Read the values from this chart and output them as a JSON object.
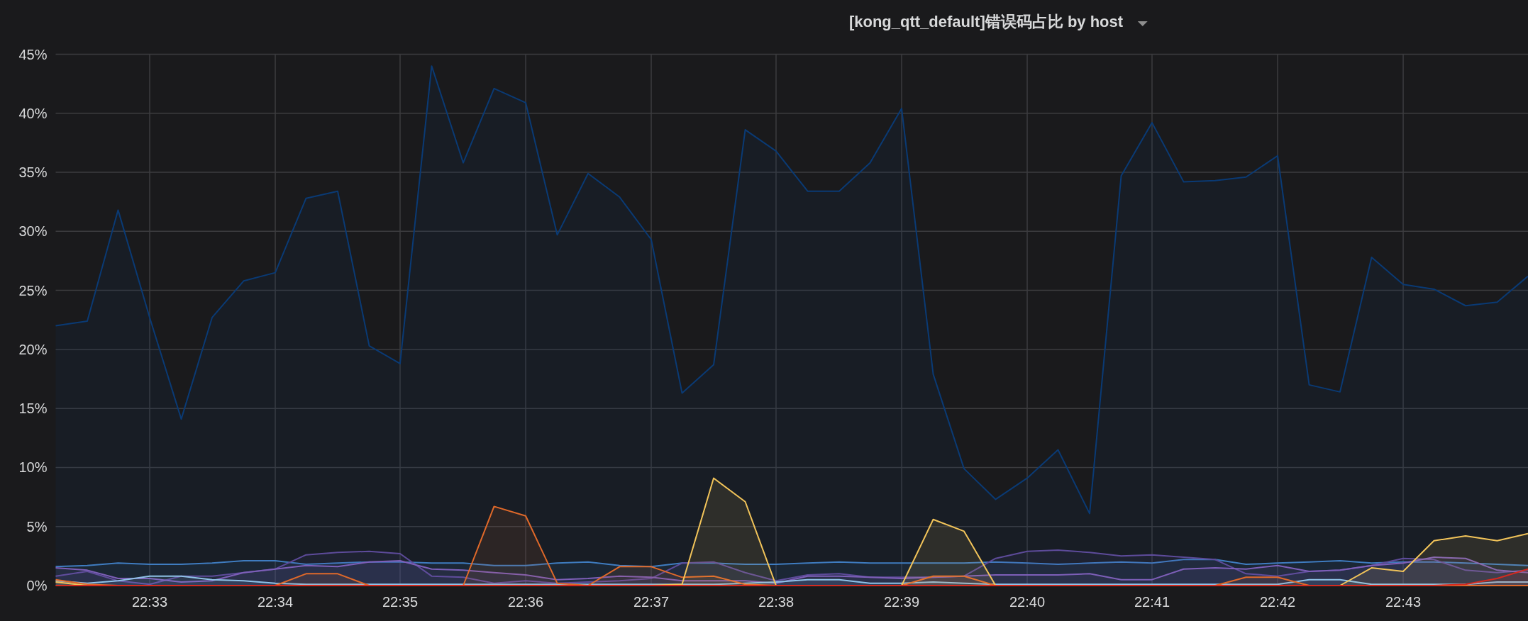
{
  "chart_data": {
    "type": "area",
    "title": "[kong_qtt_default]错误码占比 by host",
    "x": [
      22.5375,
      22.5417,
      22.5458,
      22.55,
      22.5542,
      22.5583,
      22.5625,
      22.5667,
      22.5708,
      22.575,
      22.5792,
      22.5833,
      22.5875,
      22.5917,
      22.5958,
      22.6,
      22.6042,
      22.6083,
      22.6125,
      22.6167,
      22.6208,
      22.625,
      22.6292,
      22.6333,
      22.6375,
      22.6417,
      22.6458,
      22.65,
      22.6542,
      22.6583,
      22.6625,
      22.6667,
      22.6708,
      22.675,
      22.6792,
      22.6833,
      22.6875,
      22.6917,
      22.6958,
      22.7,
      22.7042,
      22.7083,
      22.7125,
      22.7167,
      22.7208,
      22.725,
      22.7292,
      22.7333
    ],
    "xlim": [
      22.5375,
      22.7333
    ],
    "xticks": [
      {
        "value": 22.55,
        "label": "22:33"
      },
      {
        "value": 22.5667,
        "label": "22:34"
      },
      {
        "value": 22.5833,
        "label": "22:35"
      },
      {
        "value": 22.6,
        "label": "22:36"
      },
      {
        "value": 22.6167,
        "label": "22:37"
      },
      {
        "value": 22.6333,
        "label": "22:38"
      },
      {
        "value": 22.65,
        "label": "22:39"
      },
      {
        "value": 22.6667,
        "label": "22:40"
      },
      {
        "value": 22.6833,
        "label": "22:41"
      },
      {
        "value": 22.7,
        "label": "22:42"
      },
      {
        "value": 22.7167,
        "label": "22:43"
      }
    ],
    "ylim": [
      0,
      45
    ],
    "yticks": [
      {
        "value": 0,
        "label": "0%"
      },
      {
        "value": 5,
        "label": "5%"
      },
      {
        "value": 10,
        "label": "10%"
      },
      {
        "value": 15,
        "label": "15%"
      },
      {
        "value": 20,
        "label": "20%"
      },
      {
        "value": 25,
        "label": "25%"
      },
      {
        "value": 30,
        "label": "30%"
      },
      {
        "value": 35,
        "label": "35%"
      },
      {
        "value": 40,
        "label": "40%"
      },
      {
        "value": 45,
        "label": "45%"
      }
    ],
    "grid": true,
    "series": [
      {
        "color": "#0a3a74",
        "values": [
          22.0,
          22.4,
          31.8,
          22.7,
          14.1,
          22.7,
          25.8,
          26.5,
          32.8,
          33.4,
          20.3,
          18.8,
          44.0,
          35.8,
          42.1,
          40.9,
          29.7,
          34.9,
          32.9,
          29.3,
          16.3,
          18.7,
          38.6,
          36.8,
          33.4,
          33.4,
          35.8,
          40.4,
          17.9,
          9.9,
          7.3,
          9.1,
          11.5,
          6.1,
          34.7,
          39.2,
          34.2,
          34.3,
          34.6,
          36.4,
          17.0,
          16.4,
          27.8,
          25.5,
          25.1,
          23.7,
          24.0,
          26.2
        ]
      },
      {
        "color": "#3f7cc0",
        "values": [
          1.6,
          1.7,
          1.9,
          1.8,
          1.8,
          1.9,
          2.1,
          2.1,
          1.8,
          1.9,
          2.0,
          2.0,
          1.9,
          1.9,
          1.7,
          1.7,
          1.9,
          2.0,
          1.7,
          1.6,
          1.9,
          1.9,
          1.8,
          1.8,
          1.9,
          2.0,
          1.9,
          1.9,
          1.9,
          1.9,
          2.0,
          1.9,
          1.8,
          1.9,
          2.0,
          1.9,
          2.2,
          2.2,
          1.8,
          1.9,
          2.0,
          2.1,
          1.9,
          2.0,
          2.0,
          1.9,
          1.8,
          1.7
        ]
      },
      {
        "color": "#5d4b9a",
        "values": [
          0.8,
          1.2,
          0.4,
          0.1,
          0.8,
          0.8,
          1.1,
          1.4,
          2.6,
          2.8,
          2.9,
          2.7,
          0.8,
          0.7,
          0.2,
          0.4,
          0.2,
          0.3,
          0.4,
          0.6,
          1.9,
          2.0,
          1.1,
          0.4,
          0.9,
          1.0,
          0.7,
          0.7,
          0.7,
          0.8,
          2.3,
          2.9,
          3.0,
          2.8,
          2.5,
          2.6,
          2.4,
          2.2,
          1.0,
          0.8,
          1.2,
          1.3,
          1.7,
          2.3,
          2.2,
          1.3,
          1.1,
          1.3
        ]
      },
      {
        "color": "#7d5fb8",
        "values": [
          1.5,
          1.3,
          0.6,
          0.6,
          0.3,
          0.4,
          1.1,
          1.4,
          1.7,
          1.6,
          2.0,
          2.1,
          1.4,
          1.3,
          1.1,
          0.9,
          0.5,
          0.6,
          0.8,
          0.7,
          0.4,
          0.4,
          0.4,
          0.2,
          0.8,
          0.8,
          0.7,
          0.6,
          0.7,
          0.8,
          0.9,
          0.9,
          0.9,
          1.0,
          0.5,
          0.5,
          1.4,
          1.5,
          1.4,
          1.7,
          1.2,
          1.3,
          1.7,
          1.9,
          2.4,
          2.3,
          1.3,
          1.1
        ]
      },
      {
        "color": "#8fc2e8",
        "values": [
          0.4,
          0.2,
          0.4,
          0.8,
          0.8,
          0.5,
          0.4,
          0.2,
          0.1,
          0.1,
          0.1,
          0.1,
          0.1,
          0.1,
          0.1,
          0.1,
          0.1,
          0.1,
          0.1,
          0.1,
          0.1,
          0.1,
          0.2,
          0.3,
          0.5,
          0.5,
          0.2,
          0.2,
          0.3,
          0.2,
          0.1,
          0.1,
          0.1,
          0.1,
          0.1,
          0.1,
          0.1,
          0.1,
          0.1,
          0.1,
          0.5,
          0.5,
          0.1,
          0.1,
          0.1,
          0.1,
          0.3,
          0.3
        ]
      },
      {
        "color": "#e0692a",
        "values": [
          0.5,
          0.1,
          0,
          0,
          0,
          0,
          0,
          0,
          1.0,
          1.0,
          0,
          0,
          0,
          0,
          6.7,
          5.9,
          0.2,
          0,
          1.6,
          1.6,
          0.7,
          0.8,
          0.1,
          0,
          0,
          0,
          0,
          0,
          0.8,
          0.8,
          0,
          0,
          0,
          0,
          0,
          0,
          0,
          0,
          0.7,
          0.7,
          0,
          0,
          0,
          0,
          0,
          0,
          0,
          0
        ]
      },
      {
        "color": "#f2c45a",
        "values": [
          0.3,
          0,
          0,
          0,
          0,
          0,
          0,
          0,
          0,
          0,
          0,
          0,
          0,
          0,
          0,
          0,
          0,
          0,
          0,
          0,
          0.1,
          9.1,
          7.1,
          0,
          0,
          0,
          0,
          0,
          5.6,
          4.6,
          0,
          0,
          0,
          0,
          0,
          0,
          0,
          0,
          0,
          0,
          0,
          0,
          1.5,
          1.2,
          3.8,
          4.2,
          3.8,
          4.4
        ]
      },
      {
        "color": "#d42a20",
        "values": [
          0,
          0,
          0,
          0,
          0,
          0,
          0,
          0,
          0,
          0,
          0,
          0,
          0,
          0,
          0,
          0,
          0,
          0,
          0,
          0,
          0,
          0,
          0,
          0,
          0,
          0,
          0,
          0,
          0,
          0,
          0,
          0,
          0,
          0,
          0,
          0,
          0,
          0,
          0,
          0,
          0,
          0,
          0,
          0,
          0,
          0.1,
          0.6,
          1.4
        ]
      }
    ]
  }
}
